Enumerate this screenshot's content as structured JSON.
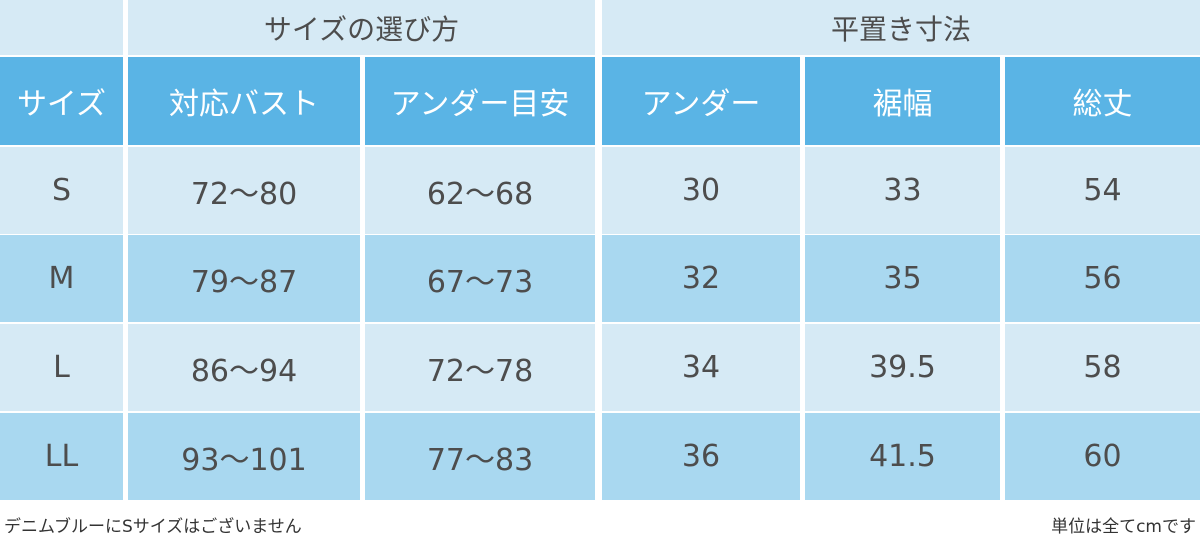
{
  "table": {
    "groups": [
      "サイズの選び方",
      "平置き寸法"
    ],
    "columns": [
      "サイズ",
      "対応バスト",
      "アンダー目安",
      "アンダー",
      "裾幅",
      "総丈"
    ],
    "rows": [
      [
        "S",
        "72～80",
        "62～68",
        "30",
        "33",
        "54"
      ],
      [
        "M",
        "79～87",
        "67～73",
        "32",
        "35",
        "56"
      ],
      [
        "L",
        "86～94",
        "72～78",
        "34",
        "39.5",
        "58"
      ],
      [
        "LL",
        "93～101",
        "77～83",
        "36",
        "41.5",
        "60"
      ]
    ]
  },
  "notes": {
    "left": "デニムブルーにSサイズはございません",
    "right": "単位は全てcmです"
  }
}
